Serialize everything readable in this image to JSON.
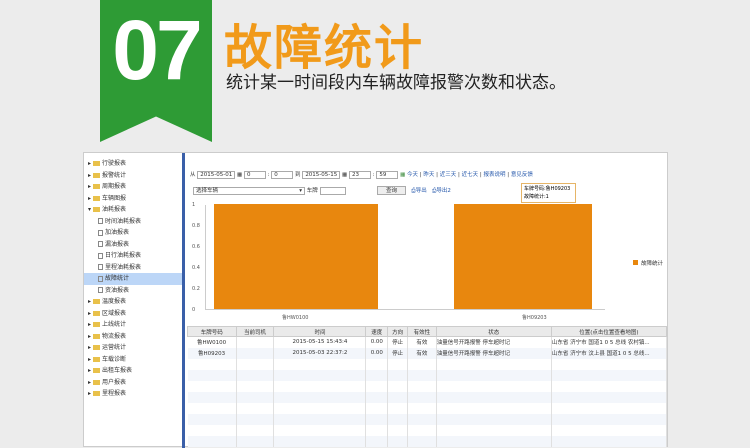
{
  "banner": {
    "number": "07",
    "title": "故障统计",
    "subtitle": "统计某一时间段内车辆故障报警次数和状态。",
    "ribbon_color": "#2e9b35",
    "title_color": "#f19a1a"
  },
  "sidebar": {
    "items": [
      {
        "label": "行驶报表",
        "type": "folder"
      },
      {
        "label": "报警统计",
        "type": "folder"
      },
      {
        "label": "周期报表",
        "type": "folder"
      },
      {
        "label": "车辆图报",
        "type": "folder"
      },
      {
        "label": "油耗报表",
        "type": "folder-open"
      },
      {
        "label": "时间油耗报表",
        "type": "doc"
      },
      {
        "label": "加油报表",
        "type": "doc"
      },
      {
        "label": "漏油报表",
        "type": "doc"
      },
      {
        "label": "日行油耗报表",
        "type": "doc"
      },
      {
        "label": "里程油耗报表",
        "type": "doc"
      },
      {
        "label": "故障统计",
        "type": "doc",
        "selected": true
      },
      {
        "label": "资油报表",
        "type": "doc"
      },
      {
        "label": "温度报表",
        "type": "folder"
      },
      {
        "label": "区域报表",
        "type": "folder"
      },
      {
        "label": "上线统计",
        "type": "folder"
      },
      {
        "label": "物流报表",
        "type": "folder"
      },
      {
        "label": "运营统计",
        "type": "folder"
      },
      {
        "label": "车载诊断",
        "type": "folder"
      },
      {
        "label": "出租车报表",
        "type": "folder"
      },
      {
        "label": "用户报表",
        "type": "folder"
      },
      {
        "label": "里程报表",
        "type": "folder"
      }
    ]
  },
  "toolbar": {
    "from_label": "从",
    "from_date": "2015-05-01",
    "from_hour": "0",
    "from_min": "0",
    "to_label": "到",
    "to_date": "2015-05-15",
    "to_hour": "23",
    "to_min": "59",
    "links": [
      "今天",
      "昨天",
      "近三天",
      "近七天",
      "报表说明",
      "意见反馈"
    ],
    "vehicle_select": "选择车辆",
    "plate_label": "车牌",
    "query": "查询",
    "export1": "导出",
    "export2": "导出2"
  },
  "tooltip": {
    "line1": "车牌号码:鲁H09203",
    "line2": "故障统计:1"
  },
  "chart_data": {
    "type": "bar",
    "categories": [
      "鲁HW0100",
      "鲁H09203"
    ],
    "series": [
      {
        "name": "故障统计",
        "values": [
          1,
          1
        ]
      }
    ],
    "ylim": [
      0,
      1
    ],
    "yticks": [
      "0",
      "0.2",
      "0.4",
      "0.6",
      "0.8",
      "1"
    ],
    "legend": "right",
    "color": "#e8870e"
  },
  "table": {
    "headers": [
      "车牌号码",
      "当前司机",
      "时间",
      "速度",
      "方向",
      "有效性",
      "状态",
      "位置(点击位置查看地图)"
    ],
    "rows": [
      [
        "鲁HW0100",
        "",
        "2015-05-15 15:43:4",
        "0.00",
        "停止",
        "有效",
        "油量信号开路报警 停车超时记",
        "山东省 济宁市 国道1 0 5 总线 农村镇..."
      ],
      [
        "鲁H09203",
        "",
        "2015-05-03 22:37:2",
        "0.00",
        "停止",
        "有效",
        "油量信号开路报警 停车超时记",
        "山东省 济宁市 汶上县 国道1 0 5 总线..."
      ]
    ]
  }
}
